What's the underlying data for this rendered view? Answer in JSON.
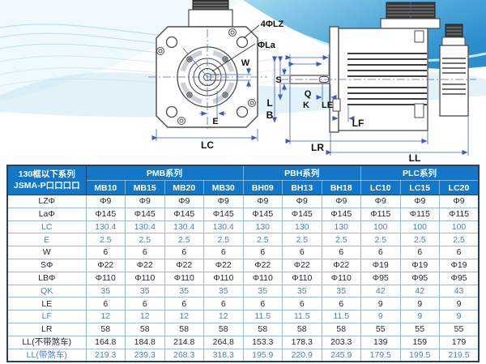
{
  "diagram": {
    "labels": {
      "lz": "4ΦLZ",
      "la": "ΦLa",
      "w": "W",
      "e": "E",
      "lc": "LC",
      "s": "S",
      "q": "Q",
      "k": "K",
      "le": "LE",
      "l": "L",
      "b": "B",
      "lf": "LF",
      "lr": "LR",
      "ll": "LL"
    }
  },
  "table": {
    "corner_header": {
      "line1": "130框以下系列",
      "line2": "JSMA-P口口口口"
    },
    "groups": [
      {
        "name": "PMB系列",
        "models": [
          "MB10",
          "MB15",
          "MB20",
          "MB30"
        ]
      },
      {
        "name": "PBH系列",
        "models": [
          "BH09",
          "BH13",
          "BH18"
        ]
      },
      {
        "name": "PLC系列",
        "models": [
          "LC10",
          "LC15",
          "LC20"
        ]
      }
    ],
    "rows": [
      {
        "label": "LZΦ",
        "muted": false,
        "values": [
          "Φ9",
          "Φ9",
          "Φ9",
          "Φ9",
          "Φ9",
          "Φ9",
          "Φ9",
          "Φ9",
          "Φ9",
          "Φ9"
        ]
      },
      {
        "label": "LaΦ",
        "muted": false,
        "values": [
          "Φ145",
          "Φ145",
          "Φ145",
          "Φ145",
          "Φ145",
          "Φ145",
          "Φ145",
          "Φ115",
          "Φ115",
          "Φ115"
        ]
      },
      {
        "label": "LC",
        "muted": true,
        "values": [
          "130.4",
          "130.4",
          "130.4",
          "130.4",
          "130",
          "130",
          "130",
          "100",
          "100",
          "100"
        ]
      },
      {
        "label": "E",
        "muted": true,
        "values": [
          "2.5",
          "2.5",
          "2.5",
          "2.5",
          "2.5",
          "2.5",
          "2.5",
          "2.5",
          "2.5",
          "2.5"
        ]
      },
      {
        "label": "W",
        "muted": false,
        "values": [
          "6",
          "6",
          "6",
          "6",
          "6",
          "6",
          "6",
          "6",
          "6",
          "6"
        ]
      },
      {
        "label": "SΦ",
        "muted": false,
        "values": [
          "Φ22",
          "Φ22",
          "Φ22",
          "Φ22",
          "Φ22",
          "Φ22",
          "Φ22",
          "Φ19",
          "Φ19",
          "Φ19"
        ]
      },
      {
        "label": "LBΦ",
        "muted": false,
        "values": [
          "Φ110",
          "Φ110",
          "Φ110",
          "Φ110",
          "Φ110",
          "Φ110",
          "Φ110",
          "Φ95",
          "Φ95",
          "Φ95"
        ]
      },
      {
        "label": "QK",
        "muted": true,
        "values": [
          "35",
          "35",
          "35",
          "35",
          "35",
          "35",
          "35",
          "42",
          "42",
          "43"
        ]
      },
      {
        "label": "LE",
        "muted": false,
        "values": [
          "6",
          "6",
          "6",
          "6",
          "6",
          "6",
          "6",
          "9",
          "9",
          "9"
        ]
      },
      {
        "label": "LF",
        "muted": true,
        "values": [
          "12",
          "12",
          "12",
          "12",
          "11.5",
          "11.5",
          "11.5",
          "9",
          "9",
          "9"
        ]
      },
      {
        "label": "LR",
        "muted": false,
        "values": [
          "58",
          "58",
          "58",
          "58",
          "58",
          "58",
          "58",
          "55",
          "55",
          "55"
        ]
      },
      {
        "label": "LL(不带煞车)",
        "muted": false,
        "values": [
          "164.8",
          "184.8",
          "214.8",
          "264.8",
          "153.3",
          "178.3",
          "203.3",
          "139",
          "159",
          "179"
        ]
      },
      {
        "label": "LL(带煞车)",
        "muted": true,
        "values": [
          "219.3",
          "239.3",
          "268.3",
          "318.3",
          "195.9",
          "220.9",
          "245.9",
          "179.5",
          "199.5",
          "219.5"
        ]
      }
    ]
  },
  "colors": {
    "header_bg": "#1277c8",
    "outer_border": "#1f4265",
    "grid_line": "#9db8d6",
    "text_dark": "#1d2633",
    "text_muted": "#4d80bd",
    "dim_line": "#3b5bc0",
    "wave_deep": "#1e88cc",
    "wave_light": "#bfe2f2"
  }
}
